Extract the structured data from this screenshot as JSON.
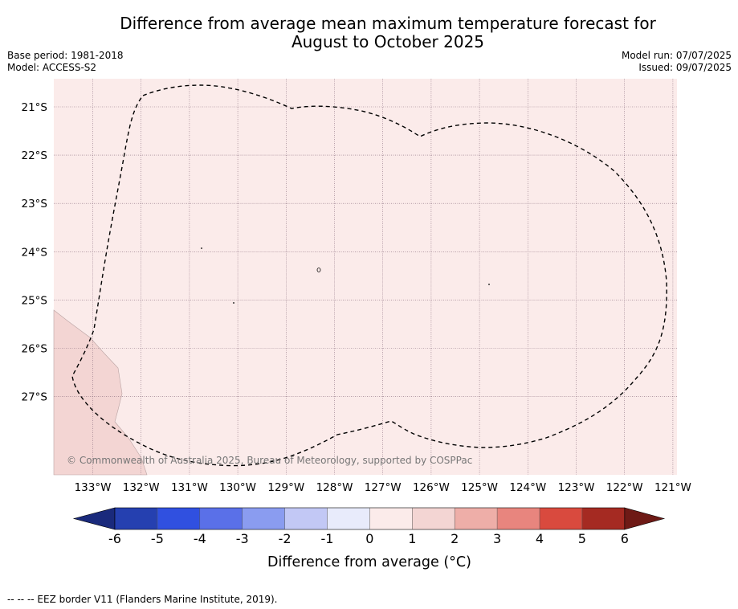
{
  "title_line1": "Difference from average mean maximum temperature forecast for",
  "title_line2": "August to October 2025",
  "base_period": "Base period: 1981-2018",
  "model": "Model: ACCESS-S2",
  "model_run": "Model run: 07/07/2025",
  "issued": "Issued: 09/07/2025",
  "copyright": "© Commonwealth of Australia 2025, Bureau of Meteorology, supported by COSPPac",
  "footer_note": "--  --  -- EEZ border V11 (Flanders Marine Institute, 2019).",
  "map": {
    "fill_color": "#fbebea",
    "land_color": "#f3d5d3",
    "lat_labels": [
      "21°S",
      "22°S",
      "23°S",
      "24°S",
      "25°S",
      "26°S",
      "27°S"
    ],
    "lon_labels": [
      "133°W",
      "132°W",
      "131°W",
      "130°W",
      "129°W",
      "128°W",
      "127°W",
      "126°W",
      "125°W",
      "124°W",
      "123°W",
      "122°W",
      "121°W"
    ],
    "anomaly_category": "0 to 1"
  },
  "colorbar": {
    "title": "Difference from average ($^\\circ$C)",
    "title_display": "Difference from average (°C)",
    "labels": [
      "-6",
      "-5",
      "-4",
      "-3",
      "-2",
      "-1",
      "0",
      "1",
      "2",
      "3",
      "4",
      "5",
      "6"
    ],
    "colors": [
      "#1a2a7c",
      "#2540b0",
      "#3050e0",
      "#5a70e8",
      "#8a9cf0",
      "#c2c8f5",
      "#e8ebfb",
      "#fbebea",
      "#f3d5d3",
      "#eeaea8",
      "#e8857e",
      "#d94a3e",
      "#a52a22",
      "#6e1a16"
    ]
  }
}
